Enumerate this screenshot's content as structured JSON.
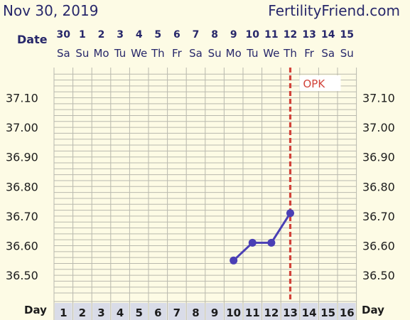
{
  "header": {
    "date": "Nov 30, 2019",
    "site": "FertilityFriend.com"
  },
  "labels": {
    "date_row": "Date",
    "day_row": "Day"
  },
  "columns": {
    "dates": [
      "30",
      "1",
      "2",
      "3",
      "4",
      "5",
      "6",
      "7",
      "8",
      "9",
      "10",
      "11",
      "12",
      "13",
      "14",
      "15"
    ],
    "weekdays": [
      "Sa",
      "Su",
      "Mo",
      "Tu",
      "We",
      "Th",
      "Fr",
      "Sa",
      "Su",
      "Mo",
      "Tu",
      "We",
      "Th",
      "Fr",
      "Sa",
      "Su"
    ],
    "cycle_days": [
      "1",
      "2",
      "3",
      "4",
      "5",
      "6",
      "7",
      "8",
      "9",
      "10",
      "11",
      "12",
      "13",
      "14",
      "15",
      "16"
    ]
  },
  "colors": {
    "background": "#fdfbe5",
    "grid": "#b9b9ae",
    "line": "#4a3fb5",
    "opk_line": "#d2433a",
    "opk_text": "#d2433a",
    "header_text": "#27276a",
    "day_cell": "#d9dce8"
  },
  "chart_data": {
    "type": "line",
    "title": "",
    "xlabel": "Day",
    "ylabel": "",
    "x_categories": [
      "1",
      "2",
      "3",
      "4",
      "5",
      "6",
      "7",
      "8",
      "9",
      "10",
      "11",
      "12",
      "13",
      "14",
      "15",
      "16"
    ],
    "y_tick_labels": [
      "37.10",
      "37.00",
      "36.90",
      "36.80",
      "36.70",
      "36.60",
      "36.50"
    ],
    "y_ticks": [
      37.1,
      37.0,
      36.9,
      36.8,
      36.7,
      36.6,
      36.5
    ],
    "ylim": [
      36.44,
      37.19
    ],
    "grid": true,
    "series": [
      {
        "x": [
          10,
          11,
          12,
          13
        ],
        "y": [
          36.55,
          36.61,
          36.61,
          36.71
        ]
      }
    ],
    "annotations": [
      {
        "type": "vertical_dashed_line",
        "x": 13,
        "label": "OPK"
      }
    ]
  }
}
